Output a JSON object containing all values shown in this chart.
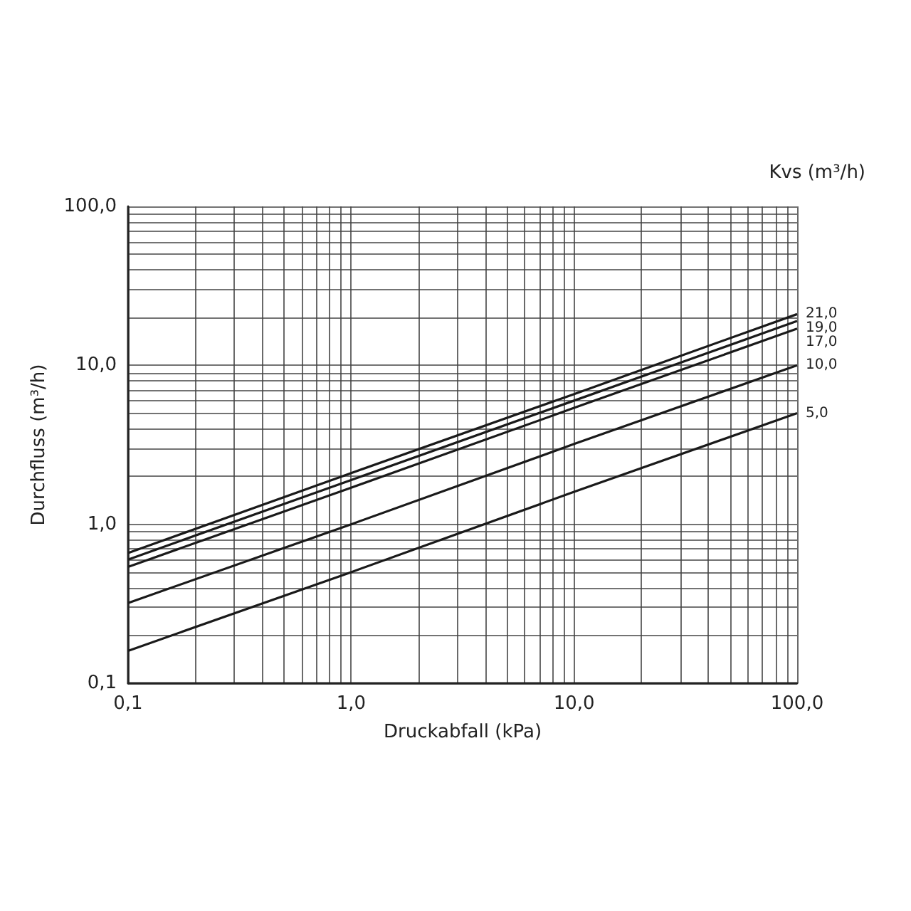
{
  "chart_data": {
    "type": "line",
    "xlabel": "Druckabfall (kPa)",
    "ylabel": "Durchfluss (m³/h)",
    "legend_title": "Kvs (m³/h)",
    "log": "xy",
    "grid": true,
    "marker": "none",
    "line_style": "solid",
    "xlim": [
      0.1,
      100
    ],
    "ylim": [
      0.1,
      100
    ],
    "xticks": [
      {
        "value": 0.1,
        "label": "0,1"
      },
      {
        "value": 1,
        "label": "1,0"
      },
      {
        "value": 10,
        "label": "10,0"
      },
      {
        "value": 100,
        "label": "100,0"
      }
    ],
    "yticks": [
      {
        "value": 0.1,
        "label": "0,1"
      },
      {
        "value": 1,
        "label": "1,0"
      },
      {
        "value": 10,
        "label": "10,0"
      },
      {
        "value": 100,
        "label": "100,0"
      }
    ],
    "x": [
      0.1,
      1,
      10,
      100
    ],
    "series": [
      {
        "name": "21,0",
        "color": "#1a1a1a",
        "values": [
          0.66,
          2.1,
          6.6,
          21
        ]
      },
      {
        "name": "19,0",
        "color": "#1a1a1a",
        "values": [
          0.6,
          1.9,
          6,
          19
        ]
      },
      {
        "name": "17,0",
        "color": "#1a1a1a",
        "values": [
          0.54,
          1.7,
          5.4,
          17
        ]
      },
      {
        "name": "10,0",
        "color": "#1a1a1a",
        "values": [
          0.32,
          1,
          3.2,
          10
        ]
      },
      {
        "name": "5,0",
        "color": "#1a1a1a",
        "values": [
          0.16,
          0.5,
          1.6,
          5
        ]
      }
    ]
  }
}
